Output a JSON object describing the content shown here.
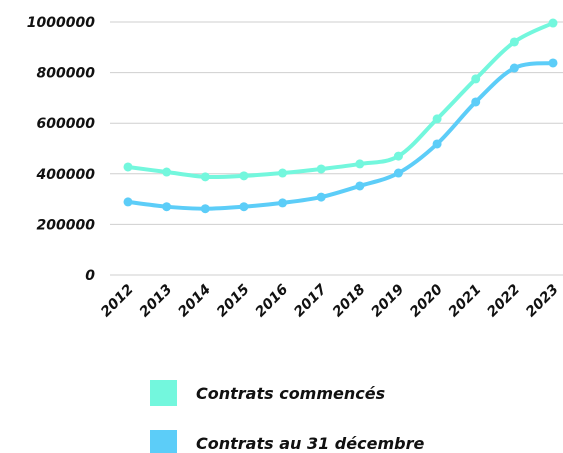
{
  "chart_data": {
    "type": "line",
    "categories": [
      "2012",
      "2013",
      "2014",
      "2015",
      "2016",
      "2017",
      "2018",
      "2019",
      "2020",
      "2021",
      "2022",
      "2023"
    ],
    "series": [
      {
        "name": "Contrats commencés",
        "color": "#73f7dd",
        "values": [
          427000,
          407000,
          388000,
          392000,
          403000,
          419000,
          439000,
          470000,
          617000,
          775000,
          921000,
          996000
        ]
      },
      {
        "name": "Contrats au 31 décembre",
        "color": "#5ccdf8",
        "values": [
          289000,
          270000,
          262000,
          270000,
          285000,
          308000,
          352000,
          403000,
          518000,
          684000,
          818000,
          838000
        ]
      }
    ],
    "ylim": [
      0,
      1000000
    ],
    "yticks": [
      0,
      200000,
      400000,
      600000,
      800000,
      1000000
    ],
    "grid": true
  }
}
